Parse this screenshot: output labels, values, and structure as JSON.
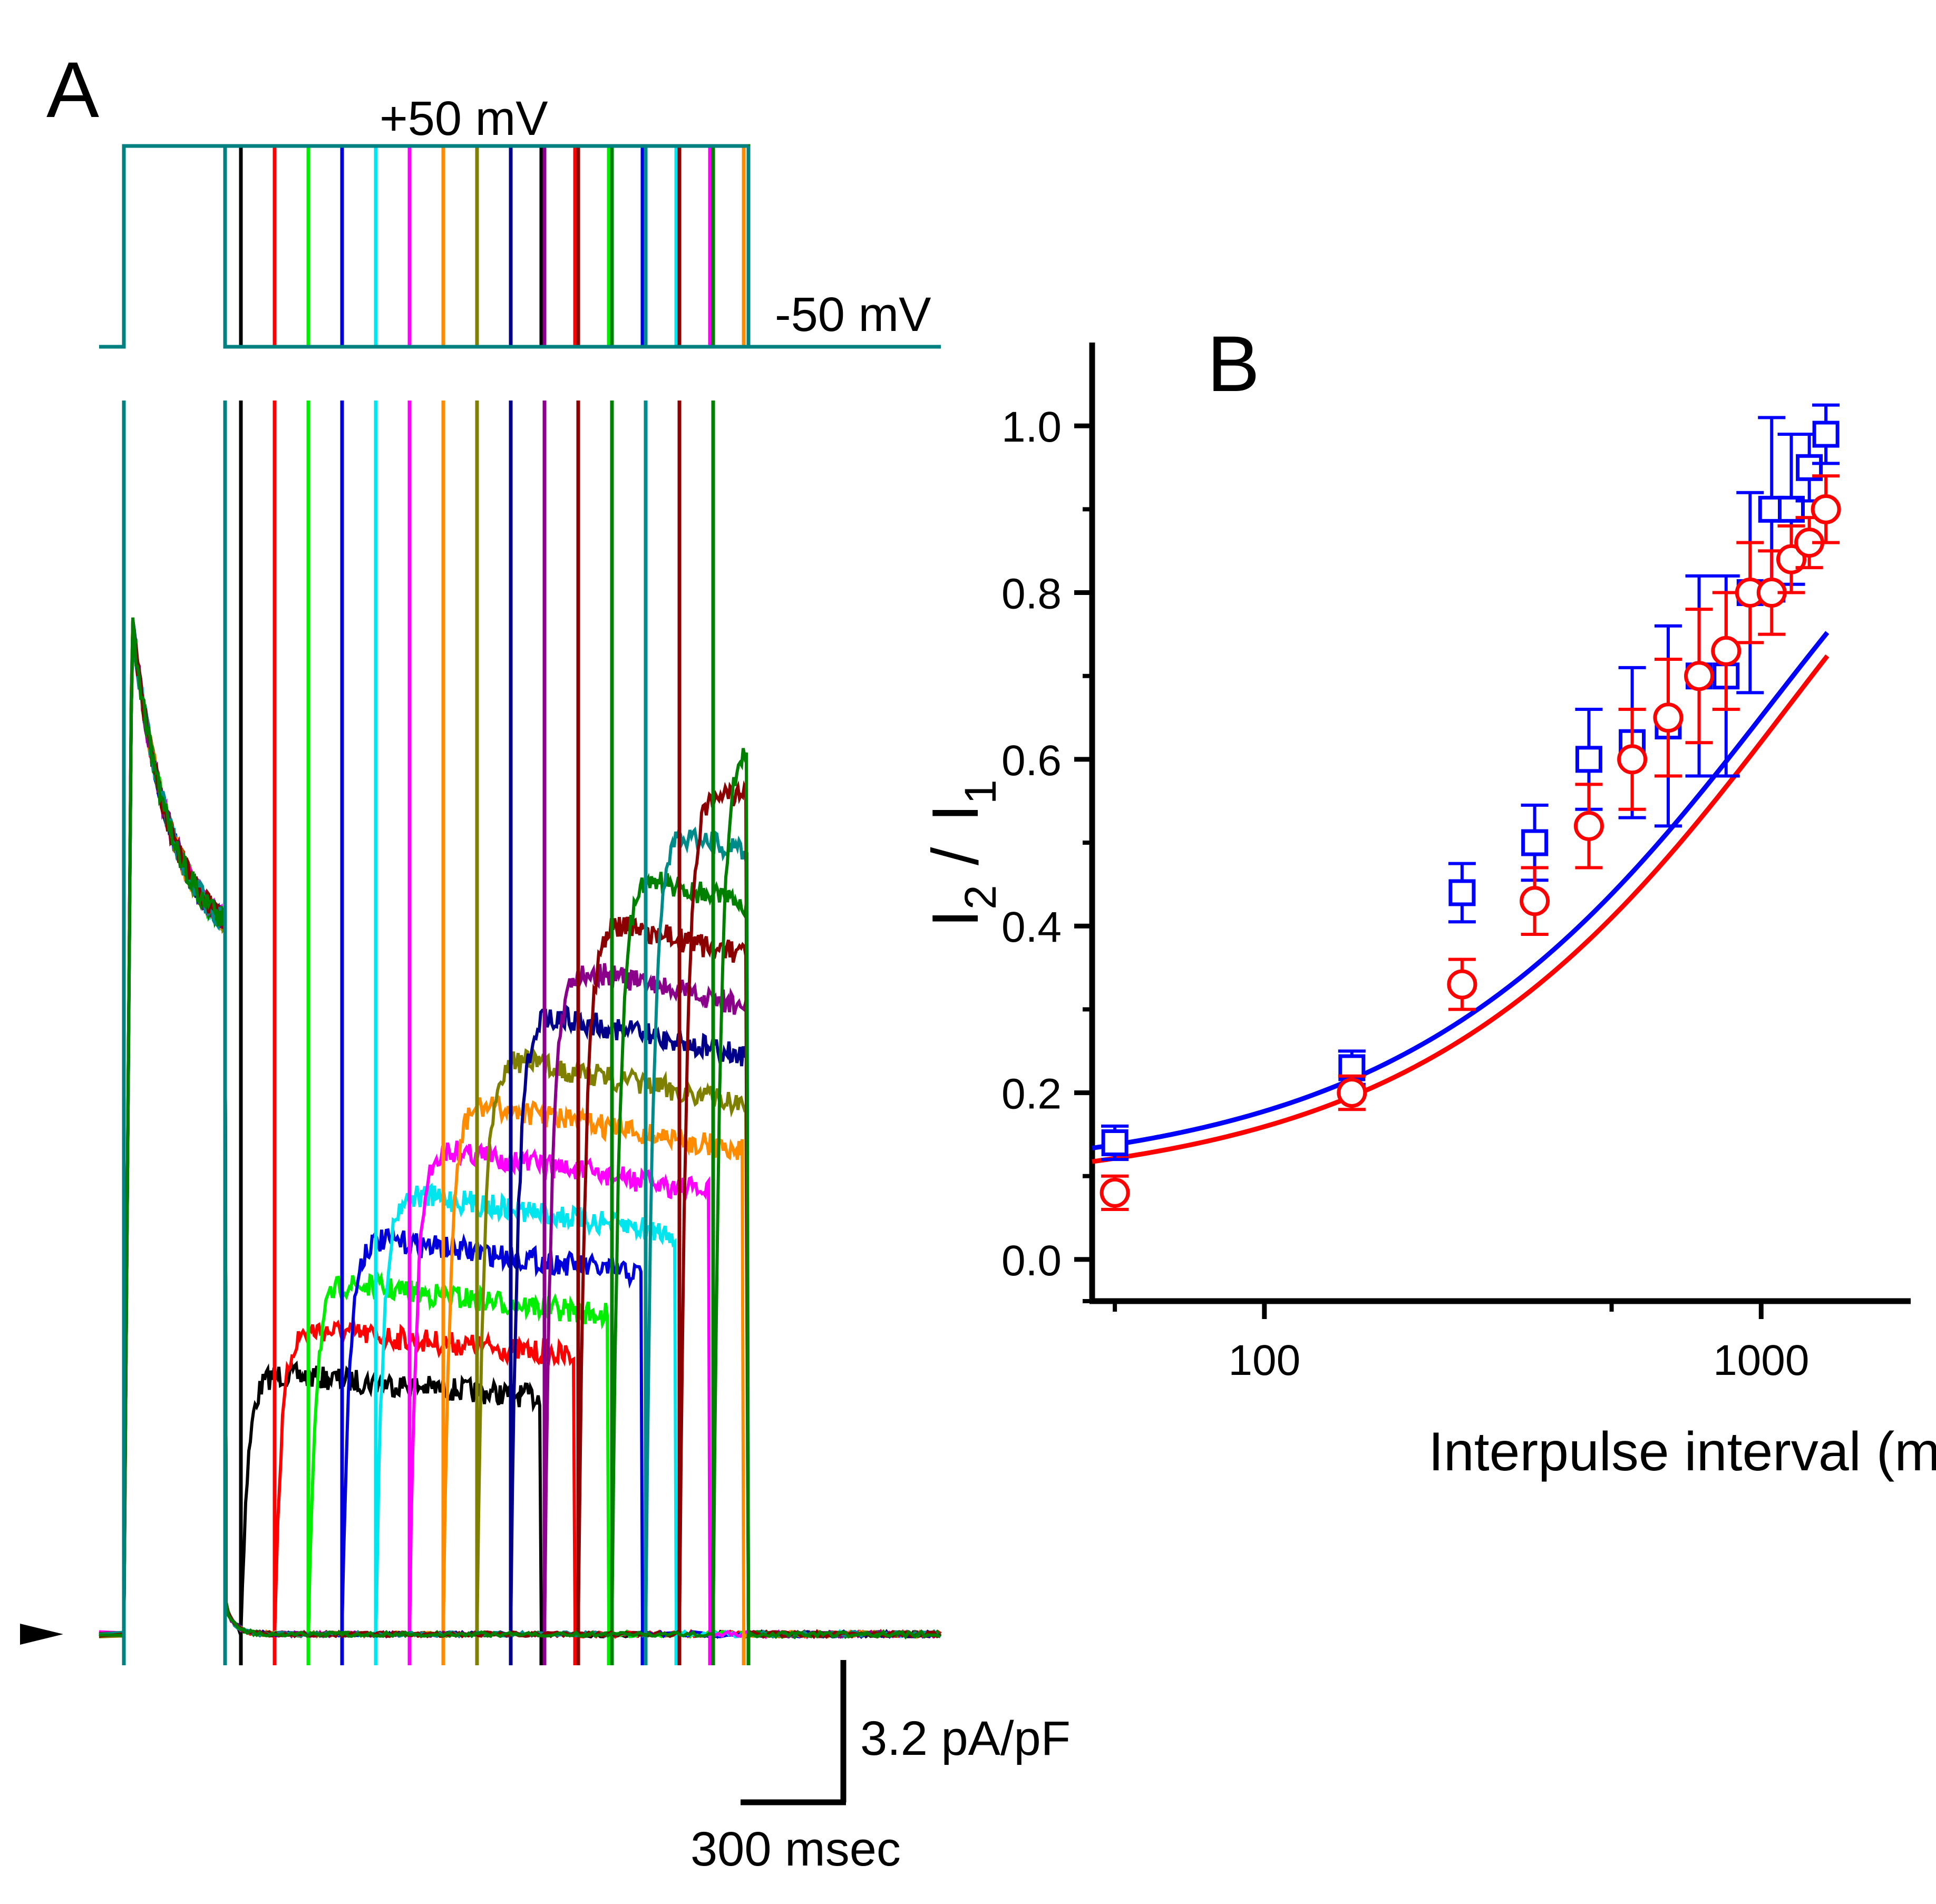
{
  "panel_a": {
    "label": "A",
    "voltage_high": "+50 mV",
    "voltage_low": "-50 mV",
    "scale_current": "3.2 pA/pF",
    "scale_time": "300 msec",
    "zero_marker_icon": "triangle-right-icon",
    "interpulse_intervals_ms": [
      50,
      150,
      250,
      350,
      450,
      550,
      650,
      750,
      850,
      950,
      1050,
      1150,
      1250,
      1350,
      1450
    ],
    "trace_colors": [
      "#000000",
      "#ff0000",
      "#00ee00",
      "#0000dd",
      "#00e5ee",
      "#ff00ff",
      "#ff8c00",
      "#808000",
      "#00008b",
      "#8b008b",
      "#8b0000",
      "#008000",
      "#008b8b",
      "#8b0000",
      "#008000"
    ],
    "final_trace_color": "#008080"
  },
  "chart_data": {
    "type": "scatter",
    "panel_label": "B",
    "xlabel": "Interpulse interval (msec)",
    "ylabel_main": "I",
    "ylabel_sub_top": "2",
    "ylabel_sep": "/",
    "ylabel_sub_bottom": "1",
    "xscale": "log",
    "xlim": [
      45,
      2000
    ],
    "ylim": [
      -0.05,
      1.1
    ],
    "yticks": [
      "0.0",
      "0.2",
      "0.4",
      "0.6",
      "0.8",
      "1.0"
    ],
    "xticks": [
      "100",
      "1000"
    ],
    "legend": "none",
    "series": [
      {
        "name": "blue squares",
        "color": "#0000ff",
        "marker": "square",
        "x": [
          50,
          150,
          250,
          350,
          450,
          550,
          650,
          750,
          850,
          950,
          1050,
          1150,
          1250,
          1350
        ],
        "y": [
          0.14,
          0.23,
          0.44,
          0.5,
          0.6,
          0.62,
          0.64,
          0.7,
          0.7,
          0.8,
          0.9,
          0.9,
          0.95,
          0.99
        ],
        "err": [
          0.02,
          0.02,
          0.035,
          0.045,
          0.06,
          0.09,
          0.12,
          0.12,
          0.12,
          0.12,
          0.11,
          0.09,
          0.04,
          0.035
        ],
        "fit": {
          "a": 0.3,
          "tau": 1050
        }
      },
      {
        "name": "red circles",
        "color": "#ff0000",
        "marker": "circle",
        "x": [
          50,
          150,
          250,
          350,
          450,
          550,
          650,
          750,
          850,
          950,
          1050,
          1150,
          1250,
          1350
        ],
        "y": [
          0.08,
          0.2,
          0.33,
          0.43,
          0.52,
          0.6,
          0.65,
          0.7,
          0.73,
          0.8,
          0.8,
          0.84,
          0.86,
          0.9
        ],
        "err": [
          0.02,
          0.02,
          0.03,
          0.04,
          0.05,
          0.06,
          0.07,
          0.08,
          0.07,
          0.06,
          0.05,
          0.04,
          0.03,
          0.04
        ],
        "fit": {
          "a": 0.27,
          "tau": 1130
        }
      }
    ]
  }
}
